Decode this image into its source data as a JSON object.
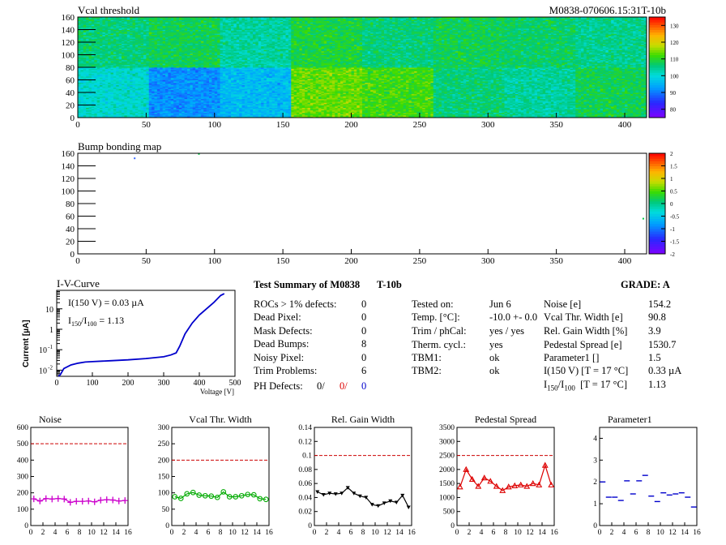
{
  "header": {
    "vcal_title": "Vcal threshold",
    "module_id": "M0838-070606.15:31T-10b",
    "bump_title": "Bump bonding map"
  },
  "colors": {
    "noise": "#cc00cc",
    "vcal": "#00aa00",
    "gain": "#000000",
    "pedestal": "#dd0000",
    "parameter1": "#0000cc",
    "threshold": "#cc0000",
    "iv": "#0000cc"
  },
  "chart_data": [
    {
      "type": "heatmap",
      "id": "vcal",
      "title": "Vcal threshold",
      "xlim": [
        0,
        416
      ],
      "ylim": [
        0,
        160
      ],
      "xticks": [
        0,
        50,
        100,
        150,
        200,
        250,
        300,
        350,
        400
      ],
      "yticks": [
        0,
        20,
        40,
        60,
        80,
        100,
        120,
        140,
        160
      ],
      "zlim": [
        75,
        135
      ],
      "colorbar_ticks": [
        80,
        90,
        100,
        110,
        120,
        130
      ],
      "roc_means_top": [
        106,
        108,
        104,
        109,
        106,
        108,
        107,
        105,
        98,
        93,
        86,
        102,
        93,
        103,
        104,
        105
      ],
      "roc_means_bottom": [
        101,
        92,
        96,
        114,
        112,
        106,
        104,
        108,
        110,
        97,
        90,
        91,
        99,
        107,
        100,
        104
      ]
    },
    {
      "type": "heatmap",
      "id": "bump",
      "title": "Bump bonding map",
      "xlim": [
        0,
        416
      ],
      "ylim": [
        0,
        160
      ],
      "xticks": [
        0,
        50,
        100,
        150,
        200,
        250,
        300,
        350,
        400
      ],
      "yticks": [
        0,
        20,
        40,
        60,
        80,
        100,
        120,
        140,
        160
      ],
      "zlim": [
        -2,
        2
      ],
      "colorbar_ticks": [
        "-2",
        "-1.5",
        "-1",
        "-0.5",
        "0",
        "0.5",
        "1",
        "1.5",
        "2"
      ],
      "marks": [
        {
          "x": 41,
          "y": 152
        },
        {
          "x": 88,
          "y": 159
        },
        {
          "x": 413,
          "y": 56
        }
      ]
    },
    {
      "type": "line",
      "id": "iv",
      "title": "I-V-Curve",
      "xlabel": "Voltage [V]",
      "ylabel": "Current [µA]",
      "xlim": [
        0,
        500
      ],
      "ylim": [
        0.005,
        80
      ],
      "log_y": true,
      "xticks": [
        0,
        100,
        200,
        300,
        400,
        500
      ],
      "annotation_1": "I(150 V) = 0.03 µA",
      "annotation_2_prefix": "I",
      "annotation_2_sub1": "150",
      "annotation_2_mid": "/I",
      "annotation_2_sub2": "100",
      "annotation_2_value": "=  1.13",
      "x": [
        5,
        10,
        20,
        40,
        60,
        80,
        100,
        150,
        200,
        250,
        300,
        320,
        335,
        345,
        360,
        380,
        400,
        420,
        440,
        460,
        470
      ],
      "y": [
        0.004,
        0.006,
        0.012,
        0.018,
        0.022,
        0.025,
        0.026,
        0.029,
        0.032,
        0.037,
        0.045,
        0.055,
        0.07,
        0.15,
        0.6,
        2,
        5,
        10,
        20,
        45,
        55
      ]
    },
    {
      "type": "line",
      "id": "noise",
      "title": "Noise",
      "xlim": [
        0,
        16
      ],
      "ylim": [
        0,
        600
      ],
      "threshold": 500,
      "xticks": [
        0,
        2,
        4,
        6,
        8,
        10,
        12,
        14,
        16
      ],
      "yticks": [
        0,
        100,
        200,
        300,
        400,
        500,
        600
      ],
      "x": [
        0,
        1,
        2,
        3,
        4,
        5,
        6,
        7,
        8,
        9,
        10,
        11,
        12,
        13,
        14,
        15
      ],
      "y": [
        163,
        150,
        165,
        162,
        165,
        162,
        142,
        148,
        148,
        150,
        145,
        155,
        158,
        156,
        150,
        153
      ]
    },
    {
      "type": "line",
      "id": "vcal_width",
      "title": "Vcal Thr. Width",
      "xlim": [
        0,
        16
      ],
      "ylim": [
        0,
        300
      ],
      "threshold": 200,
      "xticks": [
        0,
        2,
        4,
        6,
        8,
        10,
        12,
        14,
        16
      ],
      "yticks": [
        0,
        50,
        100,
        150,
        200,
        250,
        300
      ],
      "x": [
        0,
        1,
        2,
        3,
        4,
        5,
        6,
        7,
        8,
        9,
        10,
        11,
        12,
        13,
        14,
        15
      ],
      "y": [
        88,
        83,
        97,
        101,
        93,
        91,
        90,
        86,
        103,
        88,
        88,
        91,
        95,
        94,
        82,
        80
      ]
    },
    {
      "type": "line",
      "id": "gain_width",
      "title": "Rel. Gain Width",
      "xlim": [
        0,
        16
      ],
      "ylim": [
        0,
        0.14
      ],
      "threshold": 0.1,
      "xticks": [
        0,
        2,
        4,
        6,
        8,
        10,
        12,
        14,
        16
      ],
      "yticks": [
        "0",
        "0.02",
        "0.04",
        "0.06",
        "0.08",
        "0.1",
        "0.12",
        "0.14"
      ],
      "x": [
        0,
        1,
        2,
        3,
        4,
        5,
        6,
        7,
        8,
        9,
        10,
        11,
        12,
        13,
        14,
        15
      ],
      "y": [
        0.048,
        0.044,
        0.046,
        0.045,
        0.046,
        0.054,
        0.046,
        0.042,
        0.04,
        0.03,
        0.028,
        0.032,
        0.035,
        0.033,
        0.043,
        0.026
      ]
    },
    {
      "type": "line",
      "id": "pedestal_spread",
      "title": "Pedestal Spread",
      "xlim": [
        0,
        16
      ],
      "ylim": [
        0,
        3500
      ],
      "threshold": 2500,
      "xticks": [
        0,
        2,
        4,
        6,
        8,
        10,
        12,
        14,
        16
      ],
      "yticks": [
        0,
        500,
        1000,
        1500,
        2000,
        2500,
        3000,
        3500
      ],
      "x": [
        0,
        1,
        2,
        3,
        4,
        5,
        6,
        7,
        8,
        9,
        10,
        11,
        12,
        13,
        14,
        15
      ],
      "y": [
        1380,
        2000,
        1650,
        1400,
        1700,
        1580,
        1400,
        1250,
        1380,
        1420,
        1450,
        1400,
        1500,
        1450,
        2150,
        1450
      ]
    },
    {
      "type": "scatter",
      "id": "parameter1",
      "title": "Parameter1",
      "xlim": [
        0,
        16
      ],
      "ylim": [
        0,
        4.5
      ],
      "xticks": [
        0,
        2,
        4,
        6,
        8,
        10,
        12,
        14,
        16
      ],
      "yticks": [
        0,
        1,
        2,
        3,
        4
      ],
      "x": [
        0,
        1,
        2,
        3,
        4,
        5,
        6,
        7,
        8,
        9,
        10,
        11,
        12,
        13,
        14,
        15
      ],
      "y": [
        2.0,
        1.3,
        1.3,
        1.15,
        2.05,
        1.45,
        2.05,
        2.3,
        1.35,
        1.1,
        1.5,
        1.4,
        1.45,
        1.5,
        1.3,
        0.85
      ]
    }
  ],
  "summary": {
    "title": "Test Summary of M0838",
    "title_suffix": "T-10b",
    "grade": "GRADE:  A",
    "left": [
      {
        "label": "ROCs > 1% defects:",
        "value": "0"
      },
      {
        "label": "Dead Pixel:",
        "value": "0"
      },
      {
        "label": "Mask Defects:",
        "value": "0"
      },
      {
        "label": "Dead Bumps:",
        "value": "8"
      },
      {
        "label": "Noisy Pixel:",
        "value": "0"
      },
      {
        "label": "Trim Problems:",
        "value": "6"
      }
    ],
    "ph_label": "PH Defects:",
    "ph_values": [
      "0/",
      "0/",
      "0"
    ],
    "middle": [
      {
        "label": "Tested on:",
        "value": "Jun 6"
      },
      {
        "label": "Temp. [°C]:",
        "value": "-10.0 +- 0.0"
      },
      {
        "label": "Trim / phCal:",
        "value": "yes / yes"
      },
      {
        "label": "Therm. cycl.:",
        "value": "yes"
      },
      {
        "label": "TBM1:",
        "value": "ok"
      },
      {
        "label": "TBM2:",
        "value": "ok"
      }
    ],
    "right": [
      {
        "label": "Noise [e]",
        "value": "154.2"
      },
      {
        "label": "Vcal Thr. Width [e]",
        "value": "90.8"
      },
      {
        "label": "Rel. Gain Width [%]",
        "value": "3.9"
      },
      {
        "label": "Pedestal Spread [e]",
        "value": "1530.7"
      },
      {
        "label": "Parameter1 []",
        "value": "1.5"
      },
      {
        "label": "I(150 V) [T = 17 °C]",
        "value": "0.33 µA"
      }
    ],
    "ratio_label_prefix": "I",
    "ratio_sub1": "150",
    "ratio_mid": "/I",
    "ratio_sub2": "100",
    "ratio_suffix": "[T = 17 °C]",
    "ratio_value": "1.13"
  }
}
